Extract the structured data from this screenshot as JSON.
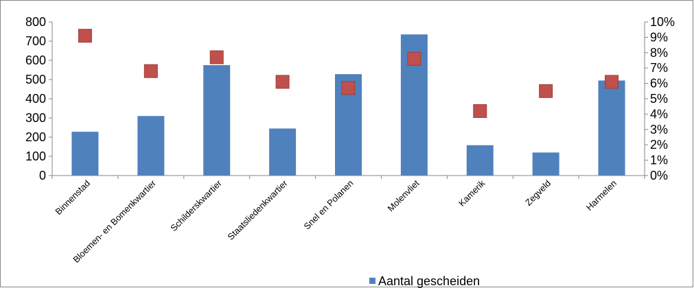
{
  "chart_data": {
    "type": "bar",
    "categories": [
      "Binnenstad",
      "Bloemen- en Bomenkwartier",
      "Schilderskwartier",
      "Staatsliedenkwartier",
      "Snel en Polanen",
      "Molenvliet",
      "Kamerik",
      "Zegveld",
      "Harmelen"
    ],
    "series": [
      {
        "name": "Aantal gescheiden",
        "type": "bar",
        "axis": "left",
        "color": "#4f81bd",
        "values": [
          228,
          310,
          575,
          245,
          528,
          735,
          158,
          120,
          495
        ]
      },
      {
        "type": "scatter",
        "axis": "right",
        "color": "#c0504d",
        "values": [
          0.091,
          0.068,
          0.077,
          0.061,
          0.057,
          0.076,
          0.042,
          0.055,
          0.061
        ]
      }
    ],
    "y_left": {
      "min": 0,
      "max": 800,
      "step": 100,
      "ticks": [
        "0",
        "100",
        "200",
        "300",
        "400",
        "500",
        "600",
        "700",
        "800"
      ]
    },
    "y_right": {
      "min": 0,
      "max": 0.1,
      "step": 0.01,
      "ticks": [
        "0%",
        "1%",
        "2%",
        "3%",
        "4%",
        "5%",
        "6%",
        "7%",
        "8%",
        "9%",
        "10%"
      ]
    },
    "grid": false,
    "legend": {
      "position": "bottom",
      "entries": [
        "Aantal gescheiden"
      ]
    }
  }
}
